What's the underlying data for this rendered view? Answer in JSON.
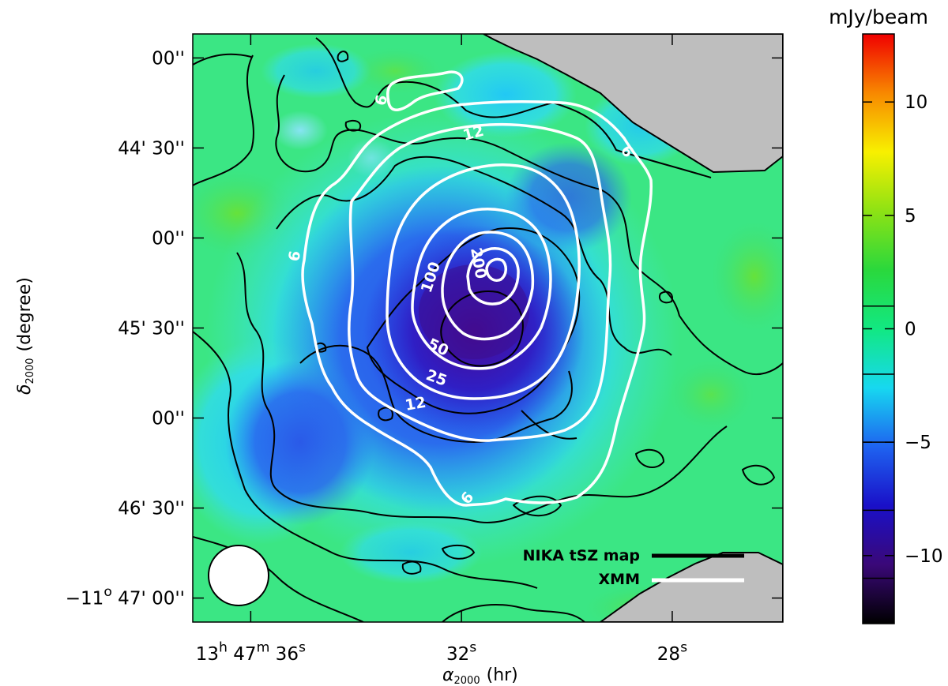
{
  "chart_data": {
    "type": "heatmap",
    "title": "",
    "xlabel": "α",
    "xlabel_sub": "2000",
    "xlabel_unit": "(hr)",
    "ylabel": "δ",
    "ylabel_sub": "2000",
    "ylabel_unit": "(degree)",
    "x_ticks": [
      {
        "value_sec": 36,
        "parts": [
          {
            "t": "13",
            "sup": false
          },
          {
            "t": "h",
            "sup": true
          },
          {
            "t": " 47",
            "sup": false
          },
          {
            "t": "m",
            "sup": true
          },
          {
            "t": " 36",
            "sup": false
          },
          {
            "t": "s",
            "sup": true
          }
        ]
      },
      {
        "value_sec": 32,
        "parts": [
          {
            "t": "32",
            "sup": false
          },
          {
            "t": "s",
            "sup": true
          }
        ]
      },
      {
        "value_sec": 28,
        "parts": [
          {
            "t": "28",
            "sup": false
          },
          {
            "t": "s",
            "sup": true
          }
        ]
      }
    ],
    "y_ticks": [
      {
        "value_arcsec": 3600,
        "parts": [
          {
            "t": "00''",
            "sup": false
          }
        ]
      },
      {
        "value_arcsec": 3630,
        "parts": [
          {
            "t": "44' 30''",
            "sup": false
          }
        ]
      },
      {
        "value_arcsec": 3660,
        "parts": [
          {
            "t": "00''",
            "sup": false
          }
        ]
      },
      {
        "value_arcsec": 3690,
        "parts": [
          {
            "t": "45' 30''",
            "sup": false
          }
        ]
      },
      {
        "value_arcsec": 3720,
        "parts": [
          {
            "t": "00''",
            "sup": false
          }
        ]
      },
      {
        "value_arcsec": 3750,
        "parts": [
          {
            "t": "46' 30''",
            "sup": false
          }
        ]
      },
      {
        "value_arcsec": 3780,
        "parts": [
          {
            "t": "−11",
            "sup": false
          },
          {
            "t": "o",
            "sup": true
          },
          {
            "t": " 47' 00''",
            "sup": false
          }
        ]
      }
    ],
    "ra_range_sec": [
      37.1,
      25.9
    ],
    "dec_range_arcsec": [
      3592,
      3788
    ],
    "colorbar": {
      "unit": "mJy/beam",
      "range": [
        -13,
        13
      ],
      "ticks": [
        10,
        5,
        0,
        -5,
        -10
      ],
      "tick_labels": [
        "10",
        "5",
        "0",
        "−5",
        "−10"
      ],
      "contour_levels": [
        -11,
        -8,
        -5,
        -2,
        1
      ]
    },
    "contours_xmm": {
      "color": "#ffffff",
      "levels": [
        {
          "label": "6",
          "value": 6
        },
        {
          "label": "12",
          "value": 12
        },
        {
          "label": "25",
          "value": 25
        },
        {
          "label": "50",
          "value": 50
        },
        {
          "label": "100",
          "value": 100
        },
        {
          "label": "200",
          "value": 200
        }
      ]
    },
    "contours_nika": {
      "color": "#000000"
    },
    "legend": {
      "position": "bottom-right",
      "entries": [
        {
          "label": "NIKA tSZ map",
          "color": "#000000"
        },
        {
          "label": "XMM",
          "color": "#ffffff"
        }
      ]
    },
    "beam": {
      "position": "bottom-left"
    },
    "grid": false
  }
}
